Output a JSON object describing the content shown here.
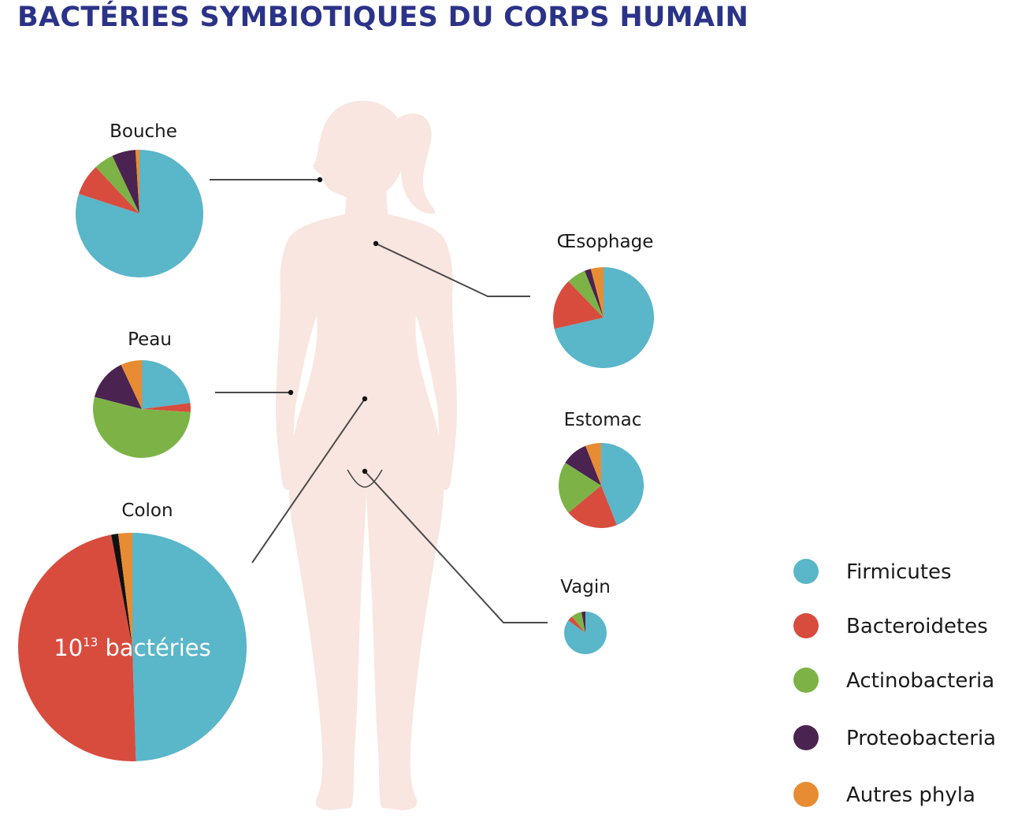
{
  "title": "BACTÉRIES SYMBIOTIQUES DU CORPS HUMAIN",
  "colors": {
    "title": "#2b3388",
    "silhouette": "#f9e6e0",
    "connector": "#4a4a4a",
    "Firmicutes": "#5ab6c9",
    "Bacteroidetes": "#d84c3e",
    "Actinobacteria": "#7db346",
    "Proteobacteria": "#4b2350",
    "Autres phyla": "#e88c33",
    "other_dark": "#111111"
  },
  "legend": {
    "items": [
      {
        "label": "Firmicutes",
        "color": "#5ab6c9"
      },
      {
        "label": "Bacteroidetes",
        "color": "#d84c3e"
      },
      {
        "label": "Actinobacteria",
        "color": "#7db346"
      },
      {
        "label": "Proteobacteria",
        "color": "#4b2350"
      },
      {
        "label": "Autres phyla",
        "color": "#e88c33"
      }
    ]
  },
  "colon_annotation": {
    "base": "10",
    "exponent": "13",
    "text": " bactéries"
  },
  "chart_data": {
    "type": "pie",
    "title": "BACTÉRIES SYMBIOTIQUES DU CORPS HUMAIN",
    "legend_position": "bottom-right",
    "categories": [
      "Firmicutes",
      "Bacteroidetes",
      "Actinobacteria",
      "Proteobacteria",
      "Autres phyla"
    ],
    "pies": [
      {
        "name": "Bouche",
        "values": {
          "Firmicutes": 80,
          "Bacteroidetes": 8,
          "Actinobacteria": 5,
          "Proteobacteria": 6,
          "Autres phyla": 1
        }
      },
      {
        "name": "Œsophage",
        "values": {
          "Firmicutes": 70,
          "Bacteroidetes": 16,
          "Actinobacteria": 6,
          "Proteobacteria": 2,
          "Autres phyla": 4
        }
      },
      {
        "name": "Peau",
        "values": {
          "Firmicutes": 23,
          "Bacteroidetes": 3,
          "Actinobacteria": 53,
          "Proteobacteria": 14,
          "Autres phyla": 7
        }
      },
      {
        "name": "Estomac",
        "values": {
          "Firmicutes": 44,
          "Bacteroidetes": 20,
          "Actinobacteria": 20,
          "Proteobacteria": 10,
          "Autres phyla": 6
        }
      },
      {
        "name": "Colon",
        "values": {
          "Firmicutes": 50,
          "Bacteroidetes": 48,
          "Actinobacteria": 0,
          "Proteobacteria": 0,
          "Autres phyla": 2
        },
        "extra_slice": 1
      },
      {
        "name": "Vagin",
        "values": {
          "Firmicutes": 85,
          "Bacteroidetes": 4,
          "Actinobacteria": 8,
          "Proteobacteria": 3,
          "Autres phyla": 0
        }
      }
    ]
  }
}
